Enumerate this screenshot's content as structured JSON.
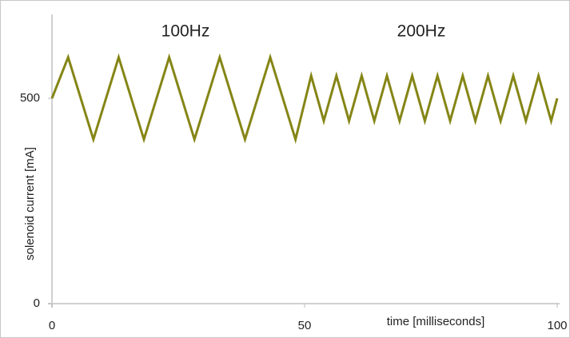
{
  "chart_data": {
    "type": "line",
    "annotations": [
      "100Hz",
      "200Hz"
    ],
    "xlabel": "time [milliseconds]",
    "ylabel": "solenoid current [mA]",
    "x": [
      0,
      3.2,
      8.2,
      13.2,
      18.2,
      23.2,
      28.2,
      33.2,
      38.2,
      43.2,
      48.2,
      51.3,
      53.8,
      56.3,
      58.8,
      61.3,
      63.8,
      66.3,
      68.8,
      71.3,
      73.8,
      76.3,
      78.8,
      81.3,
      83.8,
      86.3,
      88.8,
      91.3,
      93.8,
      96.3,
      98.8,
      100
    ],
    "series": [
      {
        "color": "#858516",
        "values": [
          500,
          600,
          400,
          600,
          400,
          600,
          400,
          600,
          400,
          600,
          400,
          555,
          445,
          555,
          445,
          555,
          445,
          555,
          445,
          555,
          445,
          555,
          445,
          555,
          445,
          555,
          445,
          555,
          445,
          555,
          445,
          500
        ]
      }
    ],
    "xlim": [
      0,
      100
    ],
    "xticks": [
      0,
      50,
      100
    ],
    "ylim": [
      0,
      720
    ],
    "yticks": [
      0,
      500
    ],
    "grid": false
  }
}
